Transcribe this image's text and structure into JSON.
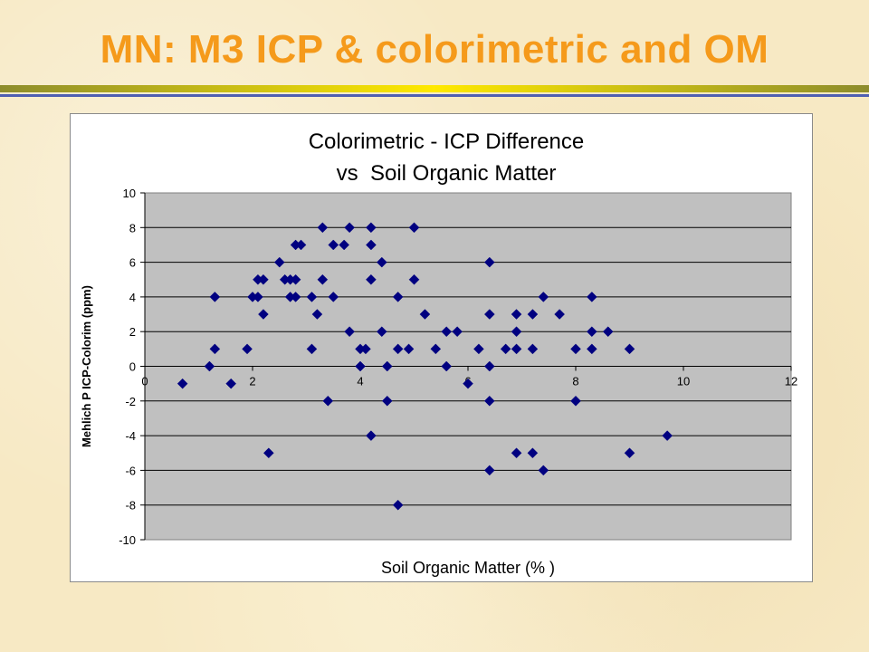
{
  "slide": {
    "title": "MN: M3 ICP & colorimetric and OM",
    "title_color": "#f59a1b",
    "rule_colors": [
      "#8d8c2c",
      "#ffe900",
      "#4f5fb2"
    ]
  },
  "chart_data": {
    "type": "scatter",
    "title": "Colorimetric - ICP Difference",
    "subtitle": "vs  Soil Organic Matter",
    "xlabel": "Soil Organic Matter (% )",
    "ylabel": "Mehlich P ICP-Colorim (ppm)",
    "xlim": [
      0,
      12
    ],
    "ylim": [
      -10,
      10
    ],
    "x_ticks": [
      "0",
      "2",
      "4",
      "6",
      "8",
      "10",
      "12"
    ],
    "y_ticks": [
      "-10",
      "-8",
      "-6",
      "-4",
      "-2",
      "0",
      "2",
      "4",
      "6",
      "8",
      "10"
    ],
    "grid": "horizontal",
    "plot_background": "#c0c0c0",
    "marker": "diamond",
    "marker_color": "#000080",
    "points": [
      [
        0.7,
        -1
      ],
      [
        1.2,
        0
      ],
      [
        1.3,
        1
      ],
      [
        1.3,
        4
      ],
      [
        1.6,
        -1
      ],
      [
        1.9,
        1
      ],
      [
        2.0,
        4
      ],
      [
        2.1,
        4
      ],
      [
        2.1,
        5
      ],
      [
        2.2,
        5
      ],
      [
        2.2,
        3
      ],
      [
        2.3,
        -5
      ],
      [
        2.5,
        6
      ],
      [
        2.6,
        5
      ],
      [
        2.7,
        5
      ],
      [
        2.7,
        4
      ],
      [
        2.8,
        4
      ],
      [
        2.8,
        5
      ],
      [
        2.8,
        7
      ],
      [
        2.9,
        7
      ],
      [
        3.1,
        4
      ],
      [
        3.1,
        1
      ],
      [
        3.2,
        3
      ],
      [
        3.3,
        5
      ],
      [
        3.3,
        8
      ],
      [
        3.4,
        -2
      ],
      [
        3.5,
        4
      ],
      [
        3.5,
        7
      ],
      [
        3.7,
        7
      ],
      [
        3.8,
        8
      ],
      [
        3.8,
        2
      ],
      [
        4.0,
        0
      ],
      [
        4.0,
        1
      ],
      [
        4.1,
        1
      ],
      [
        4.2,
        8
      ],
      [
        4.2,
        7
      ],
      [
        4.2,
        5
      ],
      [
        4.2,
        -4
      ],
      [
        4.4,
        6
      ],
      [
        4.4,
        2
      ],
      [
        4.5,
        0
      ],
      [
        4.5,
        -2
      ],
      [
        4.7,
        4
      ],
      [
        4.7,
        1
      ],
      [
        4.7,
        -8
      ],
      [
        4.9,
        1
      ],
      [
        5.0,
        8
      ],
      [
        5.0,
        5
      ],
      [
        5.2,
        3
      ],
      [
        5.4,
        1
      ],
      [
        5.6,
        2
      ],
      [
        5.6,
        0
      ],
      [
        5.8,
        2
      ],
      [
        6.0,
        -1
      ],
      [
        6.2,
        1
      ],
      [
        6.4,
        6
      ],
      [
        6.4,
        3
      ],
      [
        6.4,
        0
      ],
      [
        6.4,
        -2
      ],
      [
        6.4,
        -6
      ],
      [
        6.7,
        1
      ],
      [
        6.9,
        3
      ],
      [
        6.9,
        2
      ],
      [
        6.9,
        1
      ],
      [
        6.9,
        -5
      ],
      [
        7.2,
        3
      ],
      [
        7.2,
        1
      ],
      [
        7.2,
        -5
      ],
      [
        7.4,
        4
      ],
      [
        7.4,
        -6
      ],
      [
        7.7,
        3
      ],
      [
        8.0,
        1
      ],
      [
        8.0,
        -2
      ],
      [
        8.3,
        4
      ],
      [
        8.3,
        2
      ],
      [
        8.3,
        1
      ],
      [
        8.6,
        2
      ],
      [
        9.0,
        1
      ],
      [
        9.0,
        -5
      ],
      [
        9.7,
        -4
      ]
    ]
  }
}
